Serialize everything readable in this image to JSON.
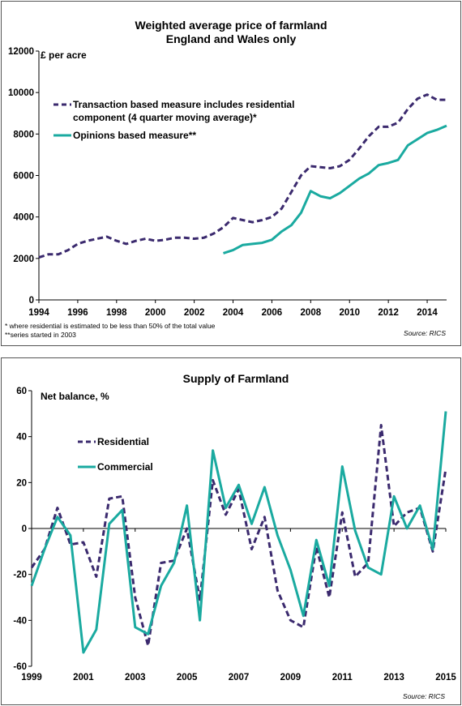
{
  "chart_data": [
    {
      "type": "line",
      "title": "Weighted average price of farmland",
      "subtitle": "England and Wales only",
      "ylabel": "£ per acre",
      "xlim": [
        1994,
        2015
      ],
      "ylim": [
        0,
        12000
      ],
      "yticks": [
        "0",
        "2000",
        "4000",
        "6000",
        "8000",
        "10000",
        "12000"
      ],
      "xticks": [
        "1994",
        "1996",
        "1998",
        "2000",
        "2002",
        "2004",
        "2006",
        "2008",
        "2010",
        "2012",
        "2014"
      ],
      "legend": "top-left",
      "series": [
        {
          "name": "Transaction based measure includes residential component (4 quarter moving average)*",
          "legend_lines": [
            "Transaction based measure includes residential",
            "component (4 quarter moving average)*"
          ],
          "color": "#3b2a6e",
          "style": "dashed",
          "x": [
            1994.0,
            1994.5,
            1995.0,
            1995.5,
            1996.0,
            1996.5,
            1997.0,
            1997.5,
            1998.0,
            1998.5,
            1999.0,
            1999.5,
            2000.0,
            2000.5,
            2001.0,
            2001.5,
            2002.0,
            2002.5,
            2003.0,
            2003.5,
            2004.0,
            2004.5,
            2005.0,
            2005.5,
            2006.0,
            2006.5,
            2007.0,
            2007.5,
            2008.0,
            2008.5,
            2009.0,
            2009.5,
            2010.0,
            2010.5,
            2011.0,
            2011.5,
            2012.0,
            2012.5,
            2013.0,
            2013.5,
            2014.0,
            2014.5,
            2015.0
          ],
          "y": [
            2050,
            2200,
            2200,
            2400,
            2700,
            2850,
            2950,
            3050,
            2850,
            2700,
            2850,
            2950,
            2850,
            2900,
            3000,
            3000,
            2950,
            3000,
            3200,
            3500,
            3950,
            3850,
            3750,
            3850,
            4000,
            4400,
            5200,
            6000,
            6450,
            6400,
            6350,
            6450,
            6750,
            7300,
            7900,
            8350,
            8350,
            8550,
            9200,
            9700,
            9900,
            9650,
            9650
          ]
        },
        {
          "name": "Opinions based measure**",
          "color": "#1aaaa0",
          "style": "solid",
          "x": [
            2003.5,
            2004.0,
            2004.5,
            2005.0,
            2005.5,
            2006.0,
            2006.5,
            2007.0,
            2007.5,
            2008.0,
            2008.5,
            2009.0,
            2009.5,
            2010.0,
            2010.5,
            2011.0,
            2011.5,
            2012.0,
            2012.5,
            2013.0,
            2013.5,
            2014.0,
            2014.5,
            2015.0
          ],
          "y": [
            2250,
            2400,
            2650,
            2700,
            2750,
            2900,
            3300,
            3600,
            4200,
            5250,
            5000,
            4900,
            5150,
            5500,
            5850,
            6100,
            6500,
            6600,
            6750,
            7450,
            7750,
            8050,
            8200,
            8400
          ]
        }
      ],
      "footnotes": [
        "* where residential is estimated to be less than 50% of the total value",
        "**series started in 2003"
      ],
      "source": "Source: RICS"
    },
    {
      "type": "line",
      "title": "Supply of Farmland",
      "ylabel": "Net balance, %",
      "xlim": [
        1999,
        2015
      ],
      "ylim": [
        -60,
        60
      ],
      "yticks": [
        "-60",
        "-40",
        "-20",
        "0",
        "20",
        "40",
        "60"
      ],
      "xticks": [
        "1999",
        "2001",
        "2003",
        "2005",
        "2007",
        "2009",
        "2011",
        "2013",
        "2015"
      ],
      "legend": "top-left",
      "series": [
        {
          "name": "Residential",
          "color": "#3b2a6e",
          "style": "dashed",
          "x": [
            1999.0,
            1999.5,
            2000.0,
            2000.5,
            2001.0,
            2001.5,
            2002.0,
            2002.5,
            2003.0,
            2003.5,
            2004.0,
            2004.5,
            2005.0,
            2005.5,
            2006.0,
            2006.5,
            2007.0,
            2007.5,
            2008.0,
            2008.5,
            2009.0,
            2009.5,
            2010.0,
            2010.5,
            2011.0,
            2011.5,
            2012.0,
            2012.5,
            2013.0,
            2013.5,
            2014.0,
            2014.5,
            2015.0
          ],
          "y": [
            -17,
            -9,
            9,
            -7,
            -6,
            -21,
            13,
            14,
            -30,
            -51,
            -15,
            -14,
            0,
            -31,
            21,
            6,
            17,
            -9,
            5,
            -27,
            -40,
            -43,
            -8,
            -30,
            7,
            -21,
            -15,
            45,
            1,
            7,
            9,
            -10,
            26
          ]
        },
        {
          "name": "Commercial",
          "color": "#1aaaa0",
          "style": "solid",
          "x": [
            1999.0,
            1999.5,
            2000.0,
            2000.5,
            2001.0,
            2001.5,
            2002.0,
            2002.5,
            2003.0,
            2003.5,
            2004.0,
            2004.5,
            2005.0,
            2005.5,
            2006.0,
            2006.5,
            2007.0,
            2007.5,
            2008.0,
            2008.5,
            2009.0,
            2009.5,
            2010.0,
            2010.5,
            2011.0,
            2011.5,
            2012.0,
            2012.5,
            2013.0,
            2013.5,
            2014.0,
            2014.5,
            2015.0
          ],
          "y": [
            -25,
            -9,
            5,
            -3,
            -54,
            -44,
            2,
            8,
            -43,
            -46,
            -25,
            -15,
            10,
            -40,
            34,
            9,
            19,
            2,
            18,
            -3,
            -18,
            -38,
            -5,
            -25,
            27,
            -1,
            -17,
            -20,
            14,
            0,
            10,
            -9,
            51
          ]
        }
      ],
      "source": "Source: RICS"
    }
  ]
}
